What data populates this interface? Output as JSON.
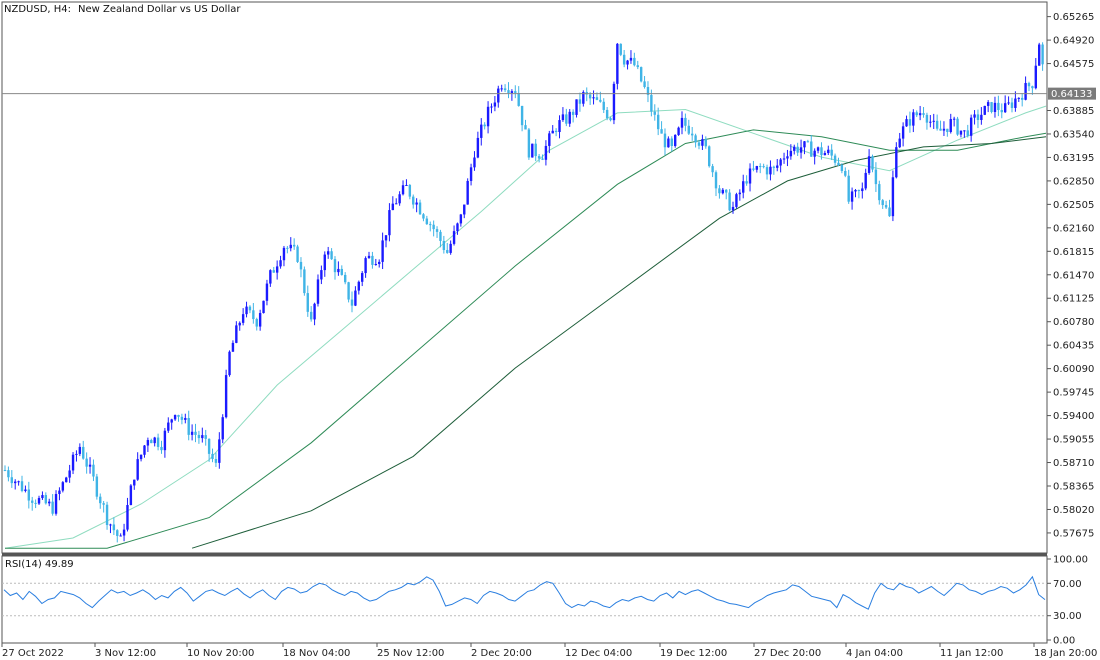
{
  "header": {
    "symbol": "NZDUSD, H4:",
    "description": "New Zealand Dollar vs US Dollar"
  },
  "colors": {
    "bull_candle": "#1a1aff",
    "bear_candle": "#3fb4e6",
    "ma_fast": "#8fdcc0",
    "ma_mid": "#2e8b57",
    "ma_slow": "#1e5e3a",
    "rsi_line": "#2b7fe0",
    "price_line": "#888888"
  },
  "current_price_label": "0.64133",
  "chart_data": [
    {
      "type": "candlestick",
      "title": "NZDUSD, H4:  New Zealand Dollar vs US Dollar",
      "ylim": [
        0.5738,
        0.6548
      ],
      "y_ticks": [
        "0.65265",
        "0.64920",
        "0.64575",
        "0.64230",
        "0.63885",
        "0.63540",
        "0.63195",
        "0.62850",
        "0.62505",
        "0.62160",
        "0.61815",
        "0.61470",
        "0.61125",
        "0.60780",
        "0.60435",
        "0.60090",
        "0.59745",
        "0.59400",
        "0.59055",
        "0.58710",
        "0.58365",
        "0.58020",
        "0.57675"
      ],
      "x_ticks": [
        "27 Oct 2022",
        "3 Nov 12:00",
        "10 Nov 20:00",
        "18 Nov 04:00",
        "25 Nov 12:00",
        "2 Dec 20:00",
        "12 Dec 04:00",
        "19 Dec 12:00",
        "27 Dec 20:00",
        "4 Jan 04:00",
        "11 Jan 12:00",
        "18 Jan 20:00"
      ],
      "current_price": 0.64133,
      "close_path": [
        [
          0,
          0.586
        ],
        [
          8,
          0.582
        ],
        [
          14,
          0.5805
        ],
        [
          18,
          0.585
        ],
        [
          22,
          0.5895
        ],
        [
          26,
          0.5845
        ],
        [
          30,
          0.579
        ],
        [
          34,
          0.5755
        ],
        [
          38,
          0.5855
        ],
        [
          42,
          0.591
        ],
        [
          46,
          0.59
        ],
        [
          50,
          0.595
        ],
        [
          54,
          0.592
        ],
        [
          58,
          0.5905
        ],
        [
          62,
          0.5865
        ],
        [
          66,
          0.603
        ],
        [
          70,
          0.6095
        ],
        [
          74,
          0.608
        ],
        [
          78,
          0.6145
        ],
        [
          82,
          0.619
        ],
        [
          86,
          0.6175
        ],
        [
          90,
          0.6075
        ],
        [
          94,
          0.6185
        ],
        [
          98,
          0.615
        ],
        [
          102,
          0.6105
        ],
        [
          106,
          0.617
        ],
        [
          110,
          0.6175
        ],
        [
          114,
          0.625
        ],
        [
          118,
          0.6275
        ],
        [
          122,
          0.6245
        ],
        [
          126,
          0.6215
        ],
        [
          130,
          0.618
        ],
        [
          134,
          0.623
        ],
        [
          138,
          0.633
        ],
        [
          142,
          0.6385
        ],
        [
          146,
          0.643
        ],
        [
          150,
          0.642
        ],
        [
          154,
          0.633
        ],
        [
          158,
          0.6325
        ],
        [
          162,
          0.6365
        ],
        [
          166,
          0.638
        ],
        [
          170,
          0.641
        ],
        [
          174,
          0.64
        ],
        [
          178,
          0.638
        ],
        [
          180,
          0.649
        ],
        [
          182,
          0.6465
        ],
        [
          185,
          0.6455
        ],
        [
          188,
          0.642
        ],
        [
          190,
          0.639
        ],
        [
          193,
          0.635
        ],
        [
          196,
          0.633
        ],
        [
          199,
          0.637
        ],
        [
          202,
          0.636
        ],
        [
          206,
          0.633
        ],
        [
          210,
          0.627
        ],
        [
          214,
          0.6245
        ],
        [
          218,
          0.629
        ],
        [
          222,
          0.6305
        ],
        [
          226,
          0.63
        ],
        [
          230,
          0.633
        ],
        [
          234,
          0.6335
        ],
        [
          238,
          0.633
        ],
        [
          242,
          0.6325
        ],
        [
          246,
          0.631
        ],
        [
          248,
          0.6255
        ],
        [
          252,
          0.627
        ],
        [
          254,
          0.633
        ],
        [
          256,
          0.628
        ],
        [
          258,
          0.6255
        ],
        [
          260,
          0.623
        ],
        [
          262,
          0.6345
        ],
        [
          266,
          0.6375
        ],
        [
          270,
          0.639
        ],
        [
          274,
          0.6355
        ],
        [
          278,
          0.637
        ],
        [
          282,
          0.6355
        ],
        [
          286,
          0.638
        ],
        [
          290,
          0.6395
        ],
        [
          294,
          0.639
        ],
        [
          298,
          0.641
        ],
        [
          302,
          0.643
        ],
        [
          304,
          0.649
        ],
        [
          306,
          0.6415
        ]
      ],
      "candle_count": 306,
      "series": [
        {
          "name": "",
          "kind": "ma_fast",
          "points": [
            [
              0,
              0.5745
            ],
            [
              20,
              0.576
            ],
            [
              40,
              0.581
            ],
            [
              60,
              0.5875
            ],
            [
              80,
              0.5985
            ],
            [
              100,
              0.607
            ],
            [
              120,
              0.6155
            ],
            [
              140,
              0.624
            ],
            [
              160,
              0.633
            ],
            [
              180,
              0.6385
            ],
            [
              200,
              0.639
            ],
            [
              220,
              0.6355
            ],
            [
              240,
              0.632
            ],
            [
              260,
              0.63
            ],
            [
              280,
              0.6345
            ],
            [
              300,
              0.6385
            ],
            [
              306,
              0.6395
            ]
          ]
        },
        {
          "name": "",
          "kind": "ma_mid",
          "points": [
            [
              0,
              0.5745
            ],
            [
              30,
              0.5745
            ],
            [
              60,
              0.579
            ],
            [
              90,
              0.59
            ],
            [
              120,
              0.603
            ],
            [
              150,
              0.616
            ],
            [
              180,
              0.628
            ],
            [
              200,
              0.634
            ],
            [
              220,
              0.636
            ],
            [
              240,
              0.635
            ],
            [
              260,
              0.633
            ],
            [
              280,
              0.633
            ],
            [
              300,
              0.635
            ],
            [
              306,
              0.6355
            ]
          ]
        },
        {
          "name": "",
          "kind": "ma_slow",
          "points": [
            [
              55,
              0.5745
            ],
            [
              90,
              0.58
            ],
            [
              120,
              0.588
            ],
            [
              150,
              0.601
            ],
            [
              180,
              0.612
            ],
            [
              210,
              0.623
            ],
            [
              230,
              0.6285
            ],
            [
              250,
              0.6315
            ],
            [
              270,
              0.6335
            ],
            [
              290,
              0.634
            ],
            [
              306,
              0.635
            ]
          ]
        }
      ]
    },
    {
      "type": "line",
      "title": "RSI(14) 49.89",
      "ylim": [
        0,
        100
      ],
      "y_ticks": [
        "100.00",
        "70.00",
        "30.00",
        "0.00"
      ],
      "levels": [
        70,
        30
      ],
      "series": [
        {
          "name": "",
          "values": [
            62,
            55,
            58,
            50,
            60,
            54,
            45,
            50,
            52,
            60,
            58,
            56,
            52,
            45,
            40,
            48,
            55,
            62,
            58,
            60,
            55,
            58,
            62,
            57,
            50,
            55,
            52,
            60,
            65,
            58,
            48,
            54,
            60,
            62,
            58,
            55,
            60,
            64,
            57,
            52,
            58,
            62,
            55,
            50,
            60,
            65,
            63,
            58,
            60,
            66,
            70,
            68,
            62,
            58,
            55,
            60,
            58,
            52,
            48,
            50,
            55,
            60,
            62,
            65,
            70,
            68,
            72,
            78,
            74,
            60,
            42,
            44,
            48,
            52,
            50,
            45,
            55,
            60,
            58,
            55,
            50,
            48,
            54,
            60,
            62,
            68,
            72,
            70,
            58,
            45,
            40,
            44,
            42,
            48,
            46,
            42,
            40,
            46,
            50,
            48,
            52,
            54,
            50,
            48,
            55,
            58,
            52,
            60,
            56,
            60,
            62,
            58,
            54,
            50,
            48,
            45,
            44,
            42,
            40,
            46,
            50,
            55,
            58,
            60,
            62,
            68,
            66,
            60,
            54,
            52,
            50,
            48,
            40,
            56,
            52,
            46,
            42,
            38,
            58,
            70,
            64,
            62,
            70,
            66,
            64,
            58,
            62,
            66,
            60,
            55,
            62,
            70,
            68,
            62,
            60,
            56,
            60,
            62,
            66,
            64,
            58,
            62,
            68,
            78,
            56,
            49.89
          ]
        }
      ]
    }
  ]
}
